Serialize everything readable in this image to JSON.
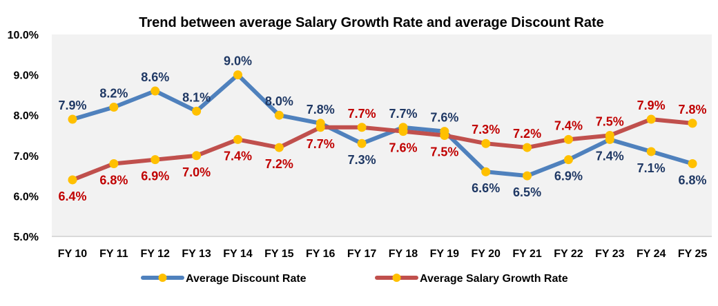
{
  "chart_data": {
    "type": "line",
    "title": "Trend between average Salary Growth Rate and average Discount Rate",
    "xlabel": "",
    "ylabel": "",
    "categories": [
      "FY 10",
      "FY 11",
      "FY 12",
      "FY 13",
      "FY 14",
      "FY 15",
      "FY 16",
      "FY 17",
      "FY 18",
      "FY 19",
      "FY 20",
      "FY 21",
      "FY 22",
      "FY 23",
      "FY 24",
      "FY 25"
    ],
    "ylim": [
      5.0,
      10.0
    ],
    "yticks": [
      "5.0%",
      "6.0%",
      "7.0%",
      "8.0%",
      "9.0%",
      "10.0%"
    ],
    "ytick_values": [
      5,
      6,
      7,
      8,
      9,
      10
    ],
    "grid": false,
    "legend_position": "bottom",
    "series": [
      {
        "name": "Average Discount Rate",
        "color": "#4F81BD",
        "label_color": "#1F3864",
        "marker_color": "#FFC000",
        "values": [
          7.9,
          8.2,
          8.6,
          8.1,
          9.0,
          8.0,
          7.8,
          7.3,
          7.7,
          7.6,
          6.6,
          6.5,
          6.9,
          7.4,
          7.1,
          6.8
        ],
        "labels": [
          "7.9%",
          "8.2%",
          "8.6%",
          "8.1%",
          "9.0%",
          "8.0%",
          "7.8%",
          "7.3%",
          "7.7%",
          "7.6%",
          "6.6%",
          "6.5%",
          "6.9%",
          "7.4%",
          "7.1%",
          "6.8%"
        ],
        "label_side": [
          "above",
          "above",
          "above",
          "above",
          "above",
          "above",
          "above",
          "below",
          "above",
          "above",
          "below",
          "below",
          "below",
          "below",
          "below",
          "below"
        ]
      },
      {
        "name": "Average Salary Growth Rate",
        "color": "#C0504D",
        "label_color": "#C00000",
        "marker_color": "#FFC000",
        "values": [
          6.4,
          6.8,
          6.9,
          7.0,
          7.4,
          7.2,
          7.7,
          7.7,
          7.6,
          7.5,
          7.3,
          7.2,
          7.4,
          7.5,
          7.9,
          7.8
        ],
        "labels": [
          "6.4%",
          "6.8%",
          "6.9%",
          "7.0%",
          "7.4%",
          "7.2%",
          "7.7%",
          "7.7%",
          "7.6%",
          "7.5%",
          "7.3%",
          "7.2%",
          "7.4%",
          "7.5%",
          "7.9%",
          "7.8%"
        ],
        "label_side": [
          "below",
          "below",
          "below",
          "below",
          "below",
          "below",
          "below",
          "above",
          "below",
          "below",
          "above",
          "above",
          "above",
          "above",
          "above",
          "above"
        ]
      }
    ],
    "plot_background": "#F2F2F2",
    "axis_color": "#D9D9D9"
  }
}
